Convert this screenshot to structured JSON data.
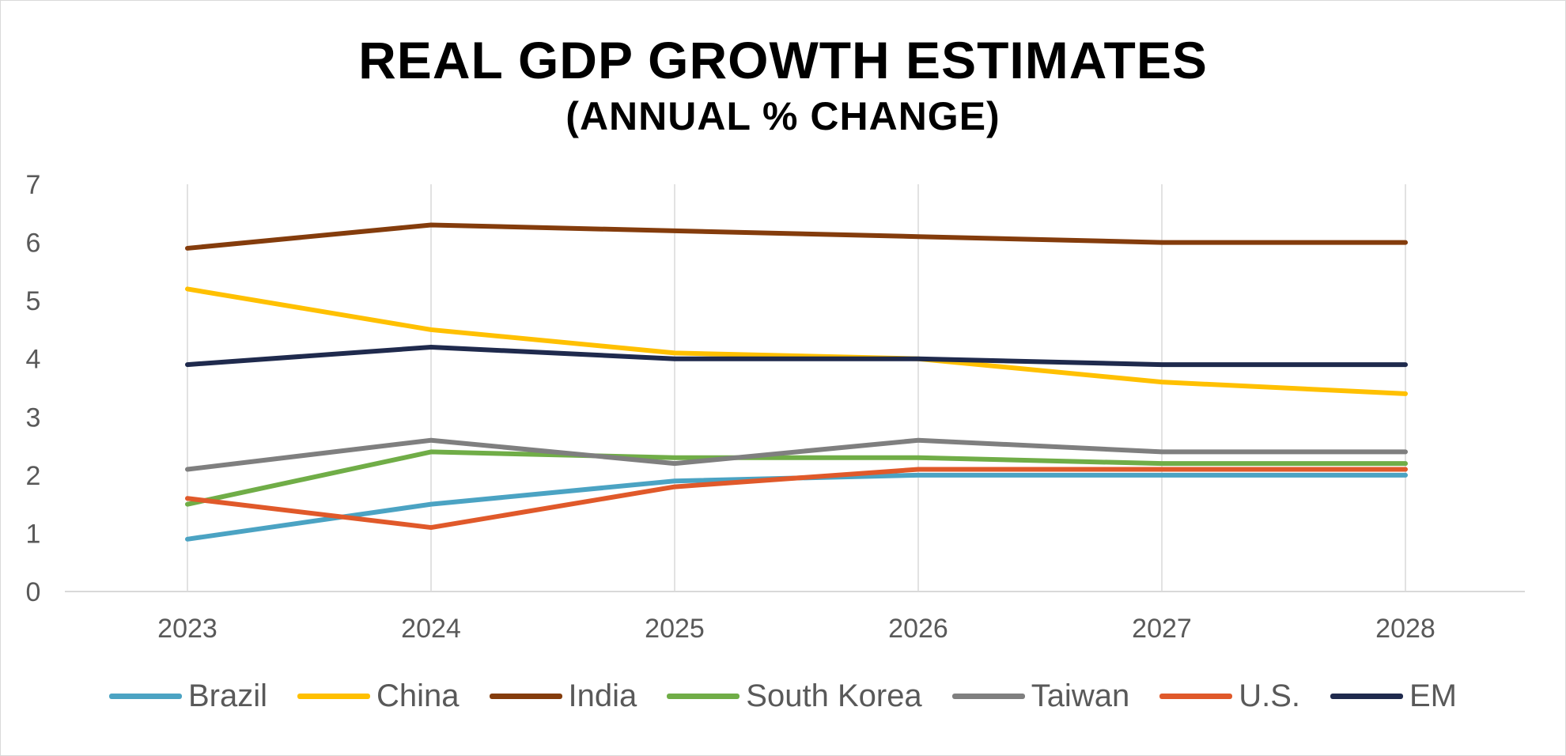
{
  "chart_data": {
    "type": "line",
    "title": "REAL GDP GROWTH ESTIMATES",
    "subtitle": "(ANNUAL % CHANGE)",
    "categories": [
      "2023",
      "2024",
      "2025",
      "2026",
      "2027",
      "2028"
    ],
    "y_ticks": [
      "0",
      "1",
      "2",
      "3",
      "4",
      "5",
      "6",
      "7"
    ],
    "ylim": [
      0,
      7
    ],
    "grid": "vertical",
    "legend_position": "bottom",
    "series": [
      {
        "name": "Brazil",
        "color": "#4BA3C3",
        "values": [
          0.9,
          1.5,
          1.9,
          2.0,
          2.0,
          2.0
        ]
      },
      {
        "name": "China",
        "color": "#FFC000",
        "values": [
          5.2,
          4.5,
          4.1,
          4.0,
          3.6,
          3.4
        ]
      },
      {
        "name": "India",
        "color": "#843C0C",
        "values": [
          5.9,
          6.3,
          6.2,
          6.1,
          6.0,
          6.0
        ]
      },
      {
        "name": "South Korea",
        "color": "#70AD47",
        "values": [
          1.5,
          2.4,
          2.3,
          2.3,
          2.2,
          2.2
        ]
      },
      {
        "name": "Taiwan",
        "color": "#7F7F7F",
        "values": [
          2.1,
          2.6,
          2.2,
          2.6,
          2.4,
          2.4
        ]
      },
      {
        "name": "U.S.",
        "color": "#E0592A",
        "values": [
          1.6,
          1.1,
          1.8,
          2.1,
          2.1,
          2.1
        ]
      },
      {
        "name": "EM",
        "color": "#1F2A4D",
        "values": [
          3.9,
          4.2,
          4.0,
          4.0,
          3.9,
          3.9
        ]
      }
    ]
  }
}
